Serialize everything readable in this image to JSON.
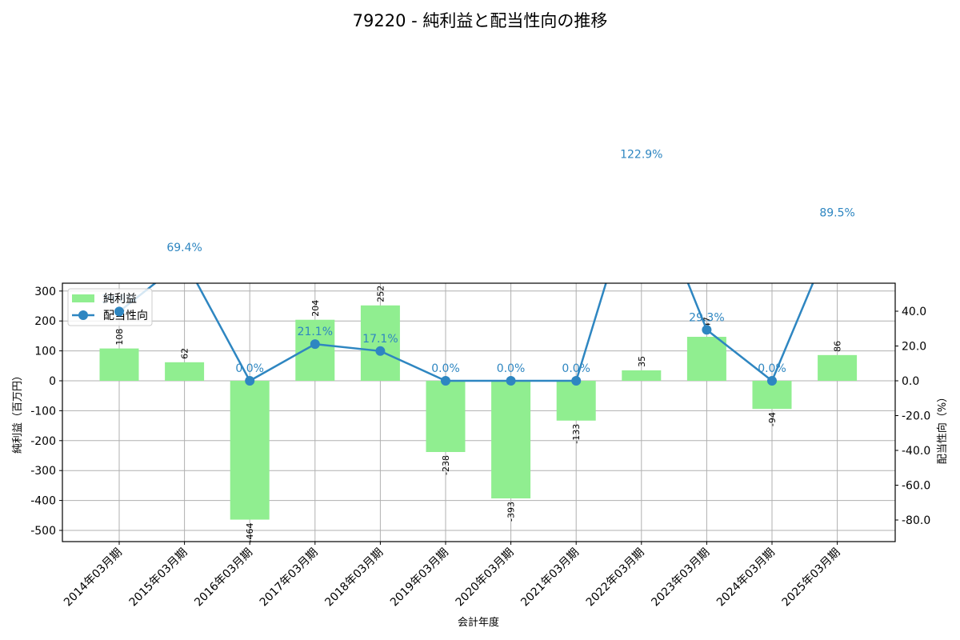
{
  "title": "79220 - 純利益と配当性向の推移",
  "xlabel": "会計年度",
  "ylabel_left": "純利益（百万円）",
  "ylabel_right": "配当性向（%）",
  "legend": {
    "bar": "純利益",
    "line": "配当性向"
  },
  "colors": {
    "bar": "#90ee90",
    "line": "#2e86c1",
    "grid": "#b0b0b0"
  },
  "left_ticks": [
    300,
    200,
    100,
    0,
    -100,
    -200,
    -300,
    -400,
    -500
  ],
  "right_ticks": [
    "40.0",
    "20.0",
    "0.0",
    "-20.0",
    "-40.0",
    "-60.0",
    "-80.0"
  ],
  "chart_data": {
    "type": "bar+line",
    "title": "79220 - 純利益と配当性向の推移",
    "xlabel": "会計年度",
    "ylabel": "純利益（百万円）",
    "y2label": "配当性向（%）",
    "categories": [
      "2014年03月期",
      "2015年03月期",
      "2016年03月期",
      "2017年03月期",
      "2018年03月期",
      "2019年03月期",
      "2020年03月期",
      "2021年03月期",
      "2022年03月期",
      "2023年03月期",
      "2024年03月期",
      "2025年03月期"
    ],
    "series": [
      {
        "name": "純利益",
        "type": "bar",
        "axis": "left",
        "values": [
          108,
          62,
          -464,
          204,
          252,
          -238,
          -393,
          -133,
          35,
          147,
          -94,
          86
        ]
      },
      {
        "name": "配当性向",
        "type": "line",
        "axis": "right",
        "values": [
          39.8,
          69.4,
          0.0,
          21.1,
          17.1,
          0.0,
          0.0,
          0.0,
          122.9,
          29.3,
          0.0,
          89.5
        ],
        "labels": [
          "39.8%",
          "69.4%",
          "0.0%",
          "21.1%",
          "17.1%",
          "0.0%",
          "0.0%",
          "0.0%",
          "122.9%",
          "29.3%",
          "0.0%",
          "89.5%"
        ]
      }
    ],
    "ylim": [
      -535,
      330
    ],
    "y2lim": [
      -92,
      56
    ],
    "grid": true,
    "legend_position": "upper left"
  }
}
